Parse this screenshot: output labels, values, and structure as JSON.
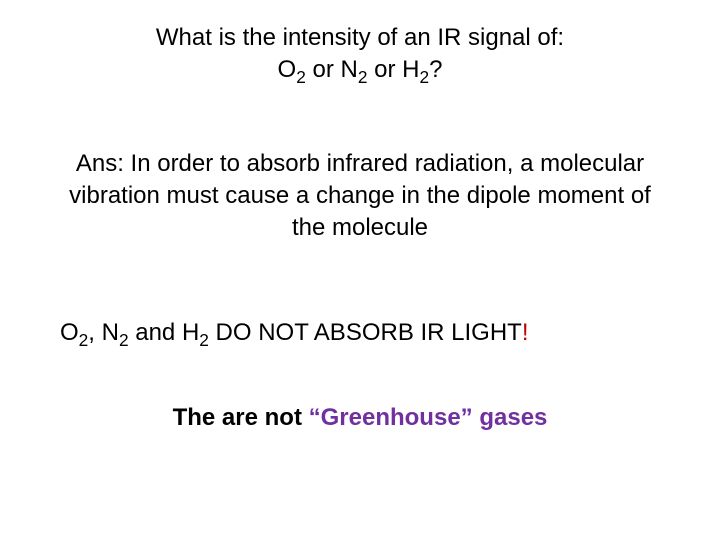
{
  "question": {
    "line1_a": "What is the intensity of an IR signal of:",
    "line2_o": "O",
    "line2_sub2a": "2",
    "line2_or1": " or N",
    "line2_sub2b": "2",
    "line2_or2": " or H",
    "line2_sub2c": "2",
    "line2_q": "?"
  },
  "answer": {
    "text": "Ans: In order to absorb infrared radiation, a molecular vibration must cause a change in the dipole moment of the molecule"
  },
  "statement": {
    "o": "O",
    "s2a": "2",
    "mid1": ", N",
    "s2b": "2",
    "mid2": " and H",
    "s2c": "2",
    "rest": " DO NOT ABSORB IR LIGHT",
    "excl": "!"
  },
  "conclusion": {
    "pre": "The are not ",
    "quoted": "“Greenhouse” gases"
  },
  "colors": {
    "text": "#000000",
    "purple": "#7030a0",
    "red": "#c00000",
    "background": "#ffffff"
  },
  "typography": {
    "font_family": "Comic Sans MS",
    "base_fontsize_pt": 24,
    "sub_scale": 0.72
  }
}
